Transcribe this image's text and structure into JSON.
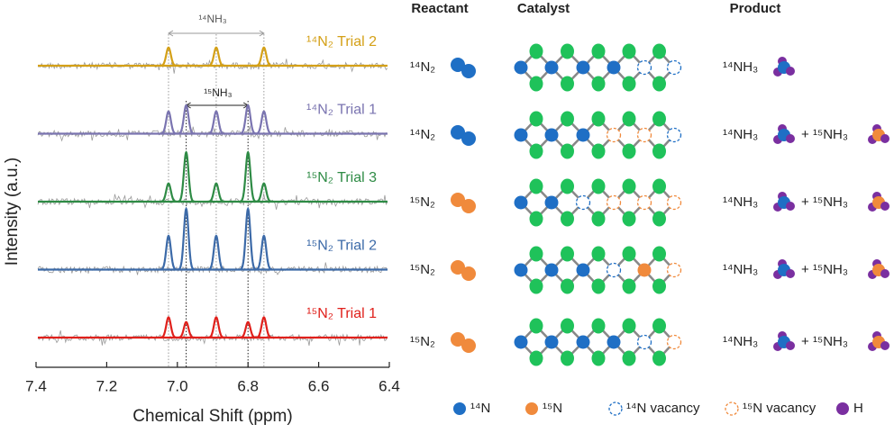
{
  "chart_data": {
    "type": "line",
    "xlabel": "Chemical Shift (ppm)",
    "ylabel": "Intensity (a.u.)",
    "xlim": [
      7.4,
      6.4
    ],
    "xticks": [
      7.4,
      7.2,
      {
        "value": 7,
        "label": "7.0"
      },
      6.8,
      6.6,
      6.4
    ],
    "x": [
      7.025,
      6.975,
      6.89,
      6.8,
      6.755
    ],
    "series": [
      {
        "name": "¹⁴N₂ Trial 2",
        "color": "#d4a017",
        "values": [
          0.27,
          0,
          0.27,
          0,
          0.27
        ]
      },
      {
        "name": "¹⁴N₂ Trial 1",
        "color": "#7a74b0",
        "values": [
          0.33,
          0.42,
          0.33,
          0.42,
          0.33
        ]
      },
      {
        "name": "¹⁵N₂ Trial 3",
        "color": "#2e8b45",
        "values": [
          0.27,
          0.73,
          0.27,
          0.73,
          0.27
        ]
      },
      {
        "name": "¹⁵N₂ Trial 2",
        "color": "#3c6aa8",
        "values": [
          0.5,
          0.9,
          0.5,
          0.9,
          0.5
        ]
      },
      {
        "name": "¹⁵N₂ Trial 1",
        "color": "#e0201b",
        "values": [
          0.3,
          0.23,
          0.3,
          0.23,
          0.3
        ]
      }
    ],
    "annotations": [
      "¹⁴NH₃",
      "¹⁵NH₃"
    ]
  },
  "scheme": {
    "headers": [
      "Reactant",
      "Catalyst",
      "Product"
    ],
    "reactants": [
      "¹⁴N₂",
      "¹⁴N₂",
      "¹⁵N₂",
      "¹⁵N₂",
      "¹⁵N₂"
    ],
    "products": [
      [
        "¹⁴NH₃"
      ],
      [
        "¹⁴NH₃",
        "¹⁵NH₃"
      ],
      [
        "¹⁴NH₃",
        "¹⁵NH₃"
      ],
      [
        "¹⁴NH₃",
        "¹⁵NH₃"
      ],
      [
        "¹⁴NH₃",
        "¹⁵NH₃"
      ]
    ],
    "plus": "+",
    "legend": [
      "¹⁴N",
      "¹⁵N",
      "¹⁴N vacancy",
      "¹⁵N vacancy",
      "H"
    ]
  }
}
